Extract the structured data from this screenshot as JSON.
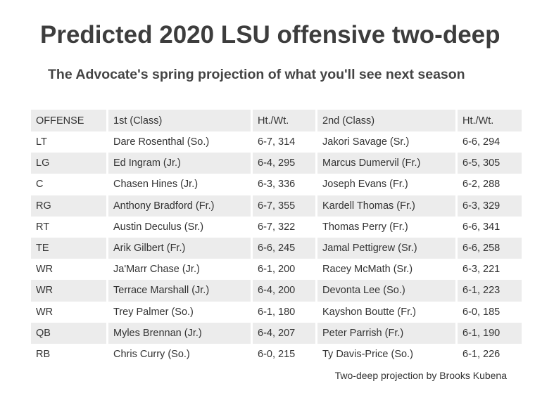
{
  "title": "Predicted 2020 LSU offensive two-deep",
  "subtitle": "The Advocate's spring projection of what you'll see next season",
  "table": {
    "columns": [
      "OFFENSE",
      "1st (Class)",
      "Ht./Wt.",
      "2nd (Class)",
      "Ht./Wt."
    ],
    "rows": [
      [
        "LT",
        "Dare Rosenthal (So.)",
        "6-7, 314",
        "Jakori Savage (Sr.)",
        "6-6, 294"
      ],
      [
        "LG",
        "Ed Ingram (Jr.)",
        "6-4, 295",
        "Marcus Dumervil (Fr.)",
        "6-5, 305"
      ],
      [
        "C",
        "Chasen Hines (Jr.)",
        "6-3, 336",
        "Joseph Evans (Fr.)",
        "6-2, 288"
      ],
      [
        "RG",
        "Anthony Bradford (Fr.)",
        "6-7, 355",
        "Kardell Thomas (Fr.)",
        "6-3, 329"
      ],
      [
        "RT",
        "Austin Deculus (Sr.)",
        "6-7, 322",
        "Thomas Perry (Fr.)",
        "6-6, 341"
      ],
      [
        "TE",
        "Arik Gilbert (Fr.)",
        "6-6, 245",
        "Jamal Pettigrew (Sr.)",
        "6-6, 258"
      ],
      [
        "WR",
        "Ja'Marr Chase (Jr.)",
        "6-1, 200",
        "Racey McMath (Sr.)",
        "6-3, 221"
      ],
      [
        "WR",
        "Terrace Marshall (Jr.)",
        "6-4, 200",
        "Devonta Lee (So.)",
        "6-1, 223"
      ],
      [
        "WR",
        "Trey Palmer (So.)",
        "6-1, 180",
        "Kayshon Boutte (Fr.)",
        "6-0, 185"
      ],
      [
        "QB",
        "Myles Brennan (Jr.)",
        "6-4, 207",
        "Peter Parrish (Fr.)",
        "6-1, 190"
      ],
      [
        "RB",
        "Chris Curry (So.)",
        "6-0, 215",
        "Ty Davis-Price (So.)",
        "6-1, 226"
      ]
    ]
  },
  "credit": "Two-deep projection by Brooks Kubena",
  "colors": {
    "stripe": "#ececec",
    "text": "#333333",
    "title": "#3d3d3d"
  }
}
